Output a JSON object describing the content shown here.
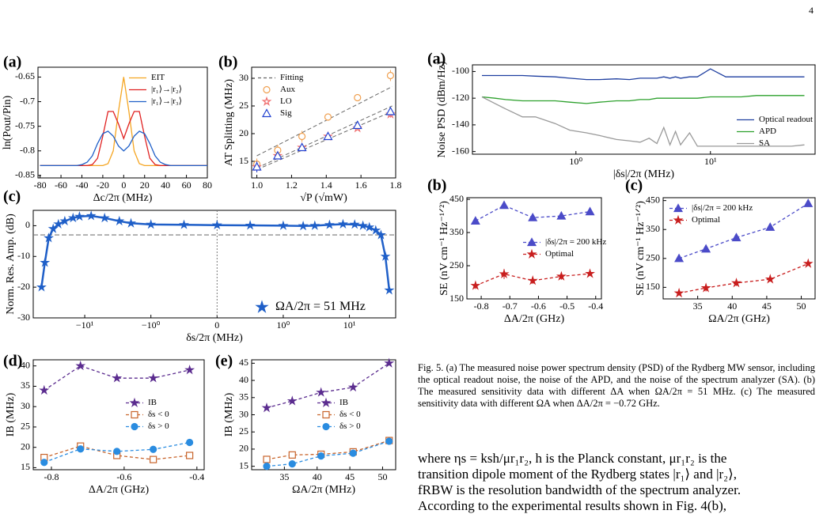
{
  "page_number": "4",
  "chart_data": [
    {
      "type": "line",
      "label": "(a)",
      "xlabel": "Δc/2π (MHz)",
      "ylabel": "ln(Pout/Pin)",
      "legend": "upper right",
      "xlim": [
        -82,
        80
      ],
      "ylim": [
        -0.855,
        -0.63
      ],
      "xticks": [
        -80,
        -60,
        -40,
        -20,
        0,
        20,
        40,
        60,
        80
      ],
      "yticks": [
        -0.85,
        -0.8,
        -0.75,
        -0.7,
        -0.65
      ],
      "x": [
        -80,
        -75,
        -70,
        -65,
        -60,
        -55,
        -50,
        -45,
        -40,
        -35,
        -30,
        -25,
        -20,
        -15,
        -10,
        -5,
        0,
        5,
        10,
        15,
        20,
        25,
        30,
        35,
        40,
        45,
        50,
        55,
        60,
        65,
        70,
        75,
        80
      ],
      "series": [
        {
          "name": "EIT",
          "color": "#f5a623",
          "linestyle": "solid",
          "marker": "none",
          "values": [
            -0.83,
            -0.83,
            -0.83,
            -0.83,
            -0.83,
            -0.83,
            -0.83,
            -0.83,
            -0.83,
            -0.83,
            -0.83,
            -0.83,
            -0.83,
            -0.826,
            -0.8,
            -0.72,
            -0.65,
            -0.72,
            -0.8,
            -0.826,
            -0.83,
            -0.83,
            -0.83,
            -0.83,
            -0.83,
            -0.83,
            -0.83,
            -0.83,
            -0.83,
            -0.83,
            -0.83,
            -0.83,
            -0.83
          ]
        },
        {
          "name": "|r₁⟩→|r₂⟩",
          "color": "#e02020",
          "linestyle": "solid",
          "marker": "none",
          "values": [
            -0.83,
            -0.83,
            -0.83,
            -0.83,
            -0.83,
            -0.83,
            -0.83,
            -0.83,
            -0.83,
            -0.83,
            -0.828,
            -0.815,
            -0.77,
            -0.72,
            -0.72,
            -0.745,
            -0.775,
            -0.745,
            -0.72,
            -0.72,
            -0.77,
            -0.815,
            -0.828,
            -0.83,
            -0.83,
            -0.83,
            -0.83,
            -0.83,
            -0.83,
            -0.83,
            -0.83,
            -0.83,
            -0.83
          ]
        },
        {
          "name": "|r₁⟩→|r₃⟩",
          "color": "#1f5fc8",
          "linestyle": "solid",
          "marker": "none",
          "values": [
            -0.83,
            -0.83,
            -0.83,
            -0.83,
            -0.83,
            -0.83,
            -0.83,
            -0.83,
            -0.828,
            -0.823,
            -0.81,
            -0.785,
            -0.765,
            -0.76,
            -0.77,
            -0.79,
            -0.8,
            -0.79,
            -0.77,
            -0.76,
            -0.765,
            -0.785,
            -0.81,
            -0.823,
            -0.828,
            -0.83,
            -0.83,
            -0.83,
            -0.83,
            -0.83,
            -0.83,
            -0.83,
            -0.83
          ]
        }
      ]
    },
    {
      "type": "scatter",
      "label": "(b)",
      "xlabel": "√P (√mW)",
      "ylabel": "AT Splitting (MHz)",
      "legend": "upper left",
      "xlim": [
        0.97,
        1.8
      ],
      "ylim": [
        12,
        32
      ],
      "xticks": [
        {
          "value": 1,
          "label": "1.0"
        },
        1.2,
        1.4,
        1.6,
        1.8
      ],
      "yticks": [
        15,
        20,
        25,
        30
      ],
      "x": [
        1.0,
        1.12,
        1.26,
        1.41,
        1.58,
        1.77
      ],
      "fit": {
        "name": "Fitting",
        "color": "#666666",
        "x": [
          1.0,
          1.78
        ],
        "lines": [
          [
            16,
            28.5
          ],
          [
            13.8,
            25
          ],
          [
            13.5,
            24
          ]
        ]
      },
      "series": [
        {
          "name": "Aux",
          "color": "#f0a050",
          "linestyle": "none",
          "marker": "circle",
          "hollow": true,
          "values": [
            14.5,
            17,
            19.5,
            23,
            26.5,
            30.5
          ],
          "errors": [
            1,
            1,
            1,
            0.6,
            0.6,
            1
          ]
        },
        {
          "name": "LO",
          "color": "#f07070",
          "linestyle": "none",
          "marker": "star",
          "hollow": true,
          "values": [
            14,
            16,
            17.5,
            19.5,
            21,
            23.5
          ],
          "errors": [
            1,
            0.5,
            0.5,
            0.4,
            0.4,
            0.6
          ]
        },
        {
          "name": "Sig",
          "color": "#2040d0",
          "linestyle": "none",
          "marker": "triangle",
          "hollow": true,
          "values": [
            14,
            16,
            17.5,
            19.5,
            21.5,
            24
          ],
          "errors": [
            1,
            0.5,
            0.5,
            0.4,
            0.4,
            0.5
          ]
        }
      ]
    },
    {
      "type": "line",
      "label": "(c)",
      "xlabel": "δs/2π (MHz)",
      "ylabel": "Norm. Res. Amp. (dB)",
      "legend": "lower right",
      "xscale": "symlog",
      "xlim": [
        -60,
        50
      ],
      "ylim": [
        -30,
        5
      ],
      "hline": -3,
      "vline": 0,
      "xticks": [
        {
          "value": -10,
          "label": "−10¹"
        },
        {
          "value": -1,
          "label": "−10⁰"
        },
        0,
        {
          "value": 1,
          "label": "10⁰"
        },
        {
          "value": 10,
          "label": "10¹"
        }
      ],
      "yticks": [
        -30,
        -20,
        -10,
        0
      ],
      "x": [
        -45,
        -40,
        -35,
        -30,
        -25,
        -20,
        -15,
        -12,
        -8,
        -5,
        -3,
        -2,
        -1,
        -0.5,
        0,
        0.5,
        1,
        2,
        3,
        5,
        8,
        12,
        16,
        20,
        25,
        30,
        35,
        40
      ],
      "series": [
        {
          "name": "ΩA/2π = 51 MHz",
          "color": "#1f5fc8",
          "linestyle": "solid",
          "marker": "star",
          "hollow": false,
          "values": [
            -20,
            -12,
            -4,
            -1,
            0.5,
            1.5,
            2.5,
            3,
            3.2,
            2.5,
            1.5,
            0.8,
            0.4,
            0.3,
            0.2,
            0.1,
            0,
            -0.1,
            0,
            0.3,
            0.5,
            0.4,
            0,
            -0.5,
            -1.5,
            -3,
            -10,
            -21
          ]
        }
      ]
    },
    {
      "type": "line",
      "label": "(d)",
      "xlabel": "ΔA/2π (GHz)",
      "ylabel": "IB (MHz)",
      "legend": "center right",
      "xlim": [
        -0.85,
        -0.38
      ],
      "ylim": [
        14.5,
        41.5
      ],
      "xticks": [
        -0.8,
        -0.6,
        -0.4
      ],
      "yticks": [
        15,
        20,
        25,
        30,
        35,
        40
      ],
      "x": [
        -0.82,
        -0.72,
        -0.62,
        -0.52,
        -0.42
      ],
      "series": [
        {
          "name": "IB",
          "color": "#5b2c8f",
          "linestyle": "dashed",
          "marker": "star",
          "values": [
            34,
            40,
            37,
            37,
            39
          ]
        },
        {
          "name": "δs < 0",
          "color": "#c8642b",
          "linestyle": "dashed",
          "marker": "square",
          "hollow": true,
          "values": [
            17.5,
            20.3,
            18,
            17,
            18
          ]
        },
        {
          "name": "δs > 0",
          "color": "#2a8ce0",
          "linestyle": "dashed",
          "marker": "circle",
          "values": [
            16.3,
            19.6,
            19,
            19.5,
            21.2
          ]
        }
      ]
    },
    {
      "type": "line",
      "label": "(e)",
      "xlabel": "ΩA/2π (MHz)",
      "ylabel": "IB (MHz)",
      "legend": "center right",
      "xlim": [
        30,
        52
      ],
      "ylim": [
        14,
        46
      ],
      "xticks": [
        35,
        40,
        45,
        50
      ],
      "yticks": [
        15,
        20,
        25,
        30,
        35,
        40,
        45
      ],
      "x": [
        32.3,
        36.2,
        40.6,
        45.5,
        51
      ],
      "series": [
        {
          "name": "IB",
          "color": "#5b2c8f",
          "linestyle": "dashed",
          "marker": "star",
          "values": [
            32,
            34,
            36.5,
            38,
            45
          ]
        },
        {
          "name": "δs < 0",
          "color": "#c8642b",
          "linestyle": "dashed",
          "marker": "square",
          "hollow": true,
          "values": [
            17,
            18.3,
            18.5,
            19.2,
            22.5
          ]
        },
        {
          "name": "δs > 0",
          "color": "#2a8ce0",
          "linestyle": "dashed",
          "marker": "circle",
          "values": [
            15,
            15.7,
            18,
            18.8,
            22.3
          ]
        }
      ]
    },
    {
      "type": "line",
      "label": "(a)",
      "xlabel": "|δs|/2π (MHz)",
      "ylabel": "Noise PSD (dBm/Hz)",
      "legend": "lower right",
      "xscale": "log",
      "xlim": [
        0.17,
        60
      ],
      "ylim": [
        -162,
        -95
      ],
      "xticks": [
        {
          "value": 1,
          "label": "10⁰"
        },
        {
          "value": 10,
          "label": "10¹"
        }
      ],
      "yticks": [
        -160,
        -140,
        -120,
        -100
      ],
      "x": [
        0.2,
        0.25,
        0.3,
        0.4,
        0.5,
        0.7,
        0.9,
        1.2,
        1.5,
        2,
        2.5,
        3,
        3.5,
        4,
        4.5,
        5,
        5.5,
        6,
        7,
        8,
        10,
        13,
        17,
        22,
        30,
        40,
        50
      ],
      "series": [
        {
          "name": "Optical readout",
          "color": "#1f3fa0",
          "linestyle": "solid",
          "marker": "none",
          "values": [
            -103,
            -103,
            -103,
            -103,
            -103.5,
            -104,
            -105,
            -106,
            -106,
            -105.5,
            -106,
            -105,
            -105,
            -105,
            -104,
            -105,
            -104,
            -105,
            -104,
            -104,
            -98,
            -104,
            -104,
            -104,
            -104,
            -104,
            -104
          ]
        },
        {
          "name": "APD",
          "color": "#2ca02c",
          "linestyle": "solid",
          "marker": "none",
          "values": [
            -119,
            -120,
            -121,
            -122,
            -122,
            -122,
            -123,
            -124,
            -123,
            -122,
            -122,
            -121,
            -121,
            -120,
            -120,
            -120,
            -120,
            -120,
            -120,
            -120,
            -119,
            -119,
            -119,
            -118,
            -118,
            -118,
            -118
          ]
        },
        {
          "name": "SA",
          "color": "#999999",
          "linestyle": "solid",
          "marker": "none",
          "values": [
            -119,
            -124,
            -128,
            -134,
            -134,
            -139,
            -144,
            -146,
            -148,
            -151,
            -152,
            -153,
            -150,
            -154,
            -142,
            -155,
            -145,
            -155,
            -146,
            -156,
            -156,
            -156,
            -156,
            -156,
            -156,
            -156,
            -155
          ]
        }
      ]
    },
    {
      "type": "line",
      "label": "(b)",
      "xlabel": "ΔA/2π (GHz)",
      "ylabel": "SE (nV cm⁻¹ Hz⁻¹ᐟ²)",
      "legend": "center right",
      "xlim": [
        -0.85,
        -0.38
      ],
      "ylim": [
        150,
        455
      ],
      "xticks": [
        -0.8,
        -0.7,
        -0.6,
        -0.5,
        -0.4
      ],
      "yticks": [
        150,
        250,
        350,
        450
      ],
      "x": [
        -0.82,
        -0.72,
        -0.62,
        -0.52,
        -0.42
      ],
      "series": [
        {
          "name": "|δs|/2π = 200 kHz",
          "color": "#4b4bc8",
          "linestyle": "dashed",
          "marker": "triangle",
          "values": [
            385,
            432,
            395,
            400,
            413
          ],
          "errors": [
            6,
            6,
            6,
            6,
            6
          ]
        },
        {
          "name": "Optimal",
          "color": "#c81e1e",
          "linestyle": "dashed",
          "marker": "star",
          "values": [
            190,
            225,
            205,
            218,
            226
          ],
          "errors": [
            10,
            15,
            10,
            10,
            5
          ]
        }
      ]
    },
    {
      "type": "line",
      "label": "(c)",
      "xlabel": "ΩA/2π (GHz)",
      "ylabel": "SE (nV cm⁻¹ Hz⁻¹ᐟ²)",
      "legend": "upper left",
      "xlim": [
        30,
        52
      ],
      "ylim": [
        110,
        460
      ],
      "xticks": [
        35,
        40,
        45,
        50
      ],
      "yticks": [
        150,
        250,
        350,
        450
      ],
      "x": [
        32.3,
        36.2,
        40.6,
        45.5,
        51
      ],
      "series": [
        {
          "name": "|δs|/2π = 200 kHz",
          "color": "#4b4bc8",
          "linestyle": "dashed",
          "marker": "triangle",
          "values": [
            250,
            283,
            322,
            358,
            440
          ],
          "errors": [
            6,
            6,
            6,
            6,
            6
          ]
        },
        {
          "name": "Optimal",
          "color": "#c81e1e",
          "linestyle": "dashed",
          "marker": "star",
          "values": [
            130,
            148,
            165,
            178,
            232
          ],
          "errors": [
            8,
            12,
            10,
            8,
            5
          ]
        }
      ]
    }
  ],
  "caption": "Fig. 5. (a) The measured noise power spectrum density (PSD) of the Rydberg MW sensor, including the optical readout noise, the noise of the APD, and the noise of the spectrum analyzer (SA). (b) The measured sensitivity data with different ΔA when ΩA/2π = 51 MHz. (c) The measured sensitivity data with different ΩA when ΔA/2π = −0.72 GHz.",
  "body": [
    "where ηs = ksh/μr₁r₂, h is the Planck constant, μr₁r₂ is the",
    "transition dipole moment of the Rydberg states |r₁⟩ and |r₂⟩,",
    "fRBW is the resolution bandwidth of the spectrum analyzer.",
    "According to the experimental results shown in Fig. 4(b),"
  ]
}
